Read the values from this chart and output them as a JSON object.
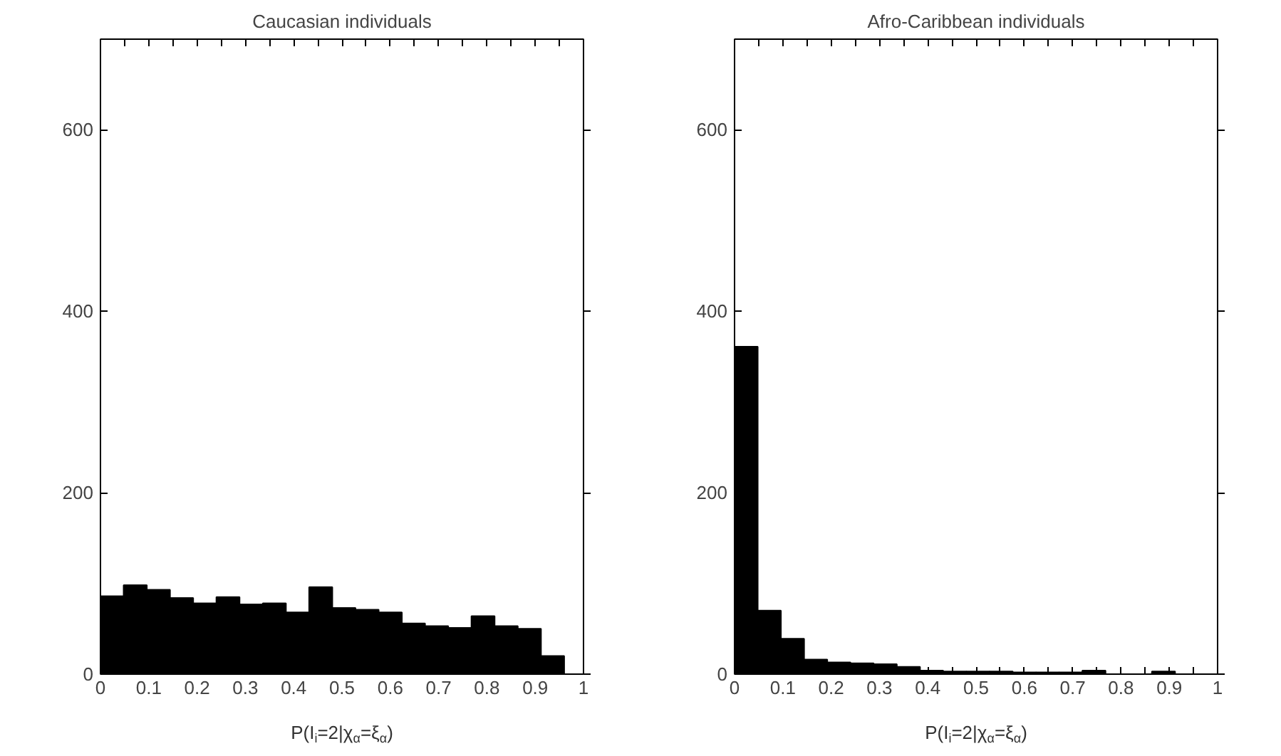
{
  "chart_data": [
    {
      "type": "histogram",
      "title": "Caucasian individuals",
      "xlabel": "P(I$_{i}$=2|χ$_{α}$=ξ$_{α}$)",
      "color": "#000000",
      "bins": [
        0,
        0.048,
        0.096,
        0.144,
        0.192,
        0.24,
        0.288,
        0.336,
        0.384,
        0.432,
        0.48,
        0.528,
        0.576,
        0.624,
        0.672,
        0.72,
        0.768,
        0.816,
        0.864,
        0.912,
        0.96
      ],
      "values": [
        86,
        98,
        93,
        84,
        78,
        85,
        77,
        78,
        68,
        96,
        73,
        71,
        68,
        56,
        53,
        51,
        64,
        53,
        50,
        20
      ],
      "xlim": [
        0,
        1
      ],
      "ylim": [
        0,
        700
      ],
      "xticks": [
        0,
        {
          "value": 0.05,
          "label": null
        },
        0.1,
        {
          "value": 0.15,
          "label": null
        },
        0.2,
        {
          "value": 0.25,
          "label": null
        },
        0.3,
        {
          "value": 0.35,
          "label": null
        },
        0.4,
        {
          "value": 0.45,
          "label": null
        },
        0.5,
        {
          "value": 0.55,
          "label": null
        },
        0.6,
        {
          "value": 0.65,
          "label": null
        },
        0.7,
        {
          "value": 0.75,
          "label": null
        },
        0.8,
        {
          "value": 0.85,
          "label": null
        },
        0.9,
        {
          "value": 0.95,
          "label": null
        },
        1
      ],
      "yticks": [
        0,
        200,
        400,
        600
      ],
      "grid": false
    },
    {
      "type": "histogram",
      "title": "Afro-Caribbean individuals",
      "xlabel": "P(I$_{i}$=2|χ$_{α}$=ξ$_{α}$)",
      "color": "#000000",
      "bins": [
        0,
        0.048,
        0.096,
        0.144,
        0.192,
        0.24,
        0.288,
        0.336,
        0.384,
        0.432,
        0.48,
        0.528,
        0.576,
        0.624,
        0.672,
        0.72,
        0.768,
        0.816,
        0.864,
        0.912,
        0.96
      ],
      "values": [
        361,
        70,
        39,
        16,
        13,
        12,
        11,
        8,
        4,
        3,
        3,
        3,
        2,
        2,
        2,
        4,
        null,
        null,
        3,
        null
      ],
      "xlim": [
        0,
        1
      ],
      "ylim": [
        0,
        700
      ],
      "xticks": [
        0,
        {
          "value": 0.05,
          "label": null
        },
        0.1,
        {
          "value": 0.15,
          "label": null
        },
        0.2,
        {
          "value": 0.25,
          "label": null
        },
        0.3,
        {
          "value": 0.35,
          "label": null
        },
        0.4,
        {
          "value": 0.45,
          "label": null
        },
        0.5,
        {
          "value": 0.55,
          "label": null
        },
        0.6,
        {
          "value": 0.65,
          "label": null
        },
        0.7,
        {
          "value": 0.75,
          "label": null
        },
        0.8,
        {
          "value": 0.85,
          "label": null
        },
        0.9,
        {
          "value": 0.95,
          "label": null
        },
        1
      ],
      "yticks": [
        0,
        200,
        400,
        600
      ],
      "grid": false
    }
  ]
}
